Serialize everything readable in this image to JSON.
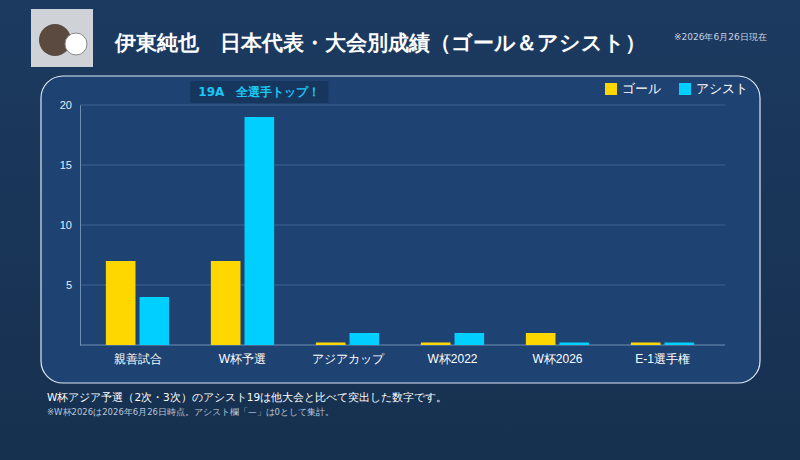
{
  "chart_data": {
    "type": "bar",
    "title": "伊東純也　日本代表・大会別成績（ゴール＆アシスト）",
    "subtitle": "※2026年6月26日現在",
    "categories": [
      "親善試合",
      "W杯予選",
      "アジアカップ",
      "W杯2022",
      "W杯2026",
      "E-1選手権"
    ],
    "series": [
      {
        "name": "ゴール",
        "color": "#ffd700",
        "values": [
          7,
          7,
          0,
          0,
          1,
          0
        ]
      },
      {
        "name": "アシスト",
        "color": "#00cfff",
        "values": [
          4,
          19,
          1,
          1,
          0,
          0
        ]
      }
    ],
    "ylim": [
      0,
      20
    ],
    "yticks": [
      5,
      10,
      15,
      20
    ],
    "grid": true,
    "legend": "upper right",
    "annotations": [
      "19A　全選手トップ！"
    ],
    "footnotes": [
      "W杯アジア予選（2次・3次）のアシスト19は他大会と比べて突出した数字です。",
      "※W杯2026は2026年6月26日時点。アシスト欄「—」は0として集計。"
    ]
  }
}
